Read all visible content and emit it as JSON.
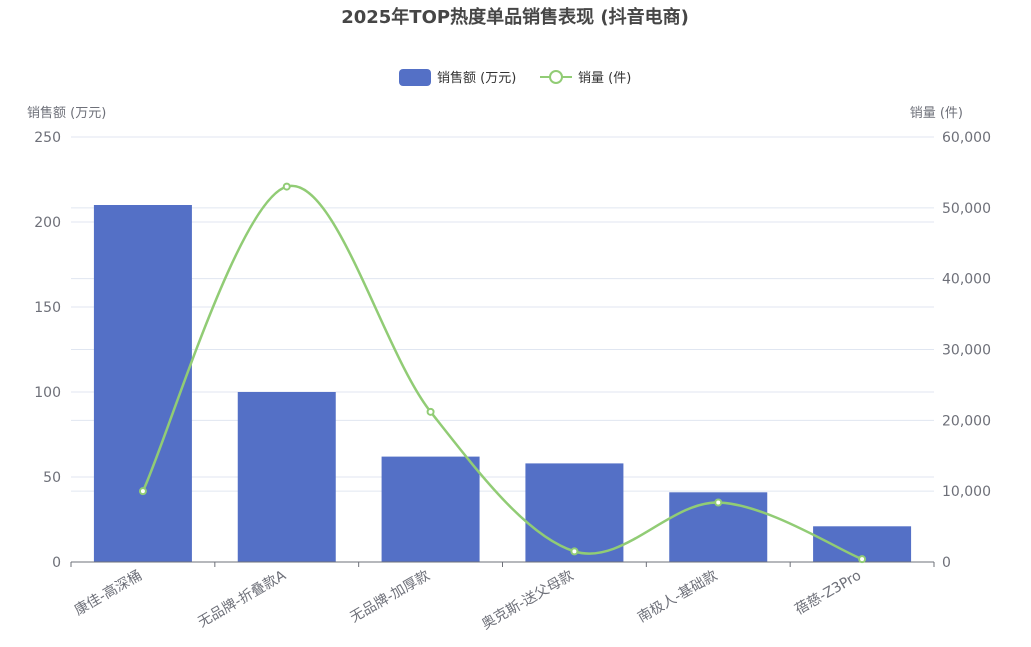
{
  "chart_data": {
    "type": "bar+line",
    "title": "2025年TOP热度单品销售表现 (抖音电商)",
    "categories": [
      "康佳-高深桶",
      "无品牌-折叠款A",
      "无品牌-加厚款",
      "奥克斯-送父母款",
      "南极人-基础款",
      "蓓慈-Z3Pro"
    ],
    "series": [
      {
        "name": "销售额 (万元)",
        "type": "bar",
        "axis": "left",
        "color": "#5470c6",
        "values": [
          210,
          100,
          62,
          58,
          41,
          21
        ]
      },
      {
        "name": "销量 (件)",
        "type": "line",
        "smooth": true,
        "axis": "right",
        "color": "#91cc75",
        "values": [
          10000,
          53000,
          21200,
          1500,
          8400,
          400
        ]
      }
    ],
    "y_left": {
      "label": "销售额 (万元)",
      "range": [
        0,
        250
      ],
      "ticks": [
        0,
        50,
        100,
        150,
        200,
        250
      ],
      "tick_labels": [
        "0",
        "50",
        "100",
        "150",
        "200",
        "250"
      ]
    },
    "y_right": {
      "label": "销量 (件)",
      "range": [
        0,
        60000
      ],
      "ticks": [
        0,
        10000,
        20000,
        30000,
        40000,
        50000,
        60000
      ],
      "tick_labels": [
        "0",
        "10,000",
        "20,000",
        "30,000",
        "40,000",
        "50,000",
        "60,000"
      ]
    },
    "grid": true,
    "legend_position": "top-center"
  }
}
